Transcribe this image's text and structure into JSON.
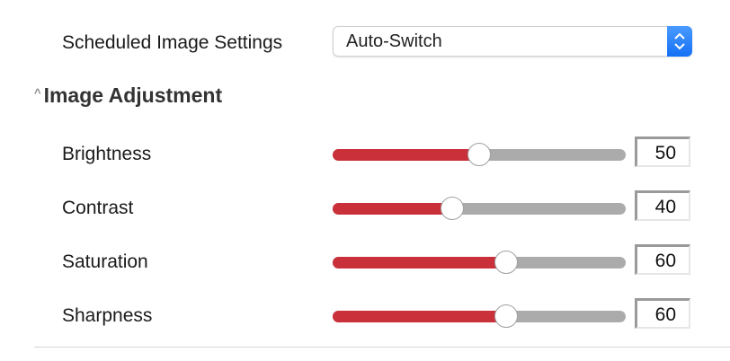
{
  "schedule": {
    "label": "Scheduled Image Settings",
    "value": "Auto-Switch"
  },
  "section": {
    "title": "Image Adjustment",
    "icon": "caret-up-icon"
  },
  "colors": {
    "fill": "#c9303a",
    "track": "#ababab",
    "stepper": "#1a78f5"
  },
  "sliders": [
    {
      "label": "Brightness",
      "value": 50
    },
    {
      "label": "Contrast",
      "value": 40
    },
    {
      "label": "Saturation",
      "value": 60
    },
    {
      "label": "Sharpness",
      "value": 60
    }
  ]
}
